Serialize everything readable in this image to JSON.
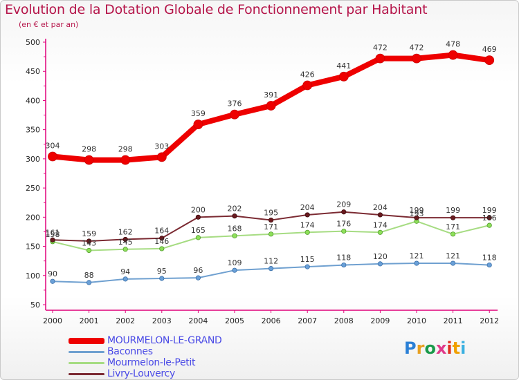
{
  "title": "Evolution de la Dotation Globale de Fonctionnement par Habitant",
  "subtitle": "(en € et par an)",
  "logo": "Proxiti",
  "chart_data": {
    "type": "line",
    "title": "Evolution de la Dotation Globale de Fonctionnement par Habitant",
    "ylabel": "en € et par an",
    "xlabel": "",
    "categories": [
      "2000",
      "2001",
      "2002",
      "2003",
      "2004",
      "2005",
      "2006",
      "2007",
      "2008",
      "2009",
      "2010",
      "2011",
      "2012"
    ],
    "ylim": [
      50,
      500
    ],
    "yticks": [
      50,
      100,
      150,
      200,
      250,
      300,
      350,
      400,
      450,
      500
    ],
    "series": [
      {
        "name": "MOURMELON-LE-GRAND",
        "color": "#ee0000",
        "values": [
          304,
          298,
          298,
          303,
          359,
          376,
          391,
          426,
          441,
          472,
          472,
          478,
          469
        ]
      },
      {
        "name": "Baconnes",
        "color": "#6fa0d0",
        "values": [
          90,
          88,
          94,
          95,
          96,
          109,
          112,
          115,
          118,
          120,
          121,
          121,
          118
        ]
      },
      {
        "name": "Mourmelon-le-Petit",
        "color": "#a6dc82",
        "values": [
          158,
          143,
          145,
          146,
          165,
          168,
          171,
          174,
          176,
          174,
          193,
          171,
          186
        ]
      },
      {
        "name": "Livry-Louvercy",
        "color": "#7b2a32",
        "values": [
          161,
          159,
          162,
          164,
          200,
          202,
          195,
          204,
          209,
          204,
          199,
          199,
          199
        ]
      }
    ]
  }
}
